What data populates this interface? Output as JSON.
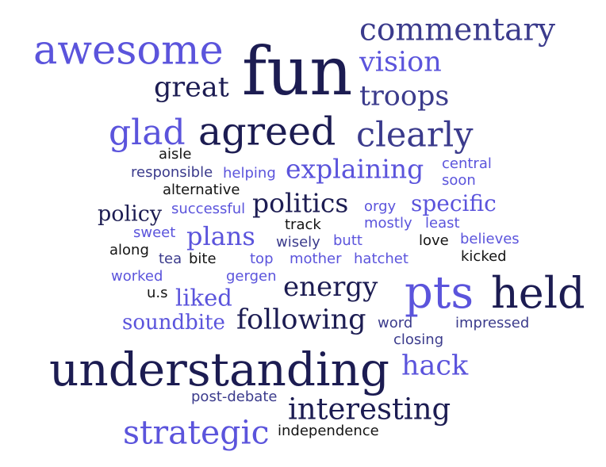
{
  "palette": {
    "dark": "#1c1c52",
    "medium": "#3b3b8c",
    "light": "#5b54dc",
    "black": "#141414"
  },
  "words": [
    {
      "text": "commentary",
      "color": "medium"
    },
    {
      "text": "awesome",
      "color": "light"
    },
    {
      "text": "fun",
      "color": "dark"
    },
    {
      "text": "vision",
      "color": "light"
    },
    {
      "text": "great",
      "color": "dark"
    },
    {
      "text": "troops",
      "color": "medium"
    },
    {
      "text": "glad",
      "color": "light"
    },
    {
      "text": "agreed",
      "color": "dark"
    },
    {
      "text": "clearly",
      "color": "medium"
    },
    {
      "text": "aisle",
      "color": "black"
    },
    {
      "text": "explaining",
      "color": "light"
    },
    {
      "text": "central",
      "color": "light"
    },
    {
      "text": "responsible",
      "color": "medium"
    },
    {
      "text": "helping",
      "color": "light"
    },
    {
      "text": "soon",
      "color": "light"
    },
    {
      "text": "alternative",
      "color": "black"
    },
    {
      "text": "politics",
      "color": "dark"
    },
    {
      "text": "specific",
      "color": "light"
    },
    {
      "text": "policy",
      "color": "dark"
    },
    {
      "text": "successful",
      "color": "light"
    },
    {
      "text": "orgy",
      "color": "light"
    },
    {
      "text": "track",
      "color": "black"
    },
    {
      "text": "mostly",
      "color": "light"
    },
    {
      "text": "least",
      "color": "light"
    },
    {
      "text": "sweet",
      "color": "light"
    },
    {
      "text": "plans",
      "color": "light"
    },
    {
      "text": "wisely",
      "color": "medium"
    },
    {
      "text": "butt",
      "color": "light"
    },
    {
      "text": "love",
      "color": "black"
    },
    {
      "text": "believes",
      "color": "light"
    },
    {
      "text": "along",
      "color": "black"
    },
    {
      "text": "kicked",
      "color": "black"
    },
    {
      "text": "tea",
      "color": "medium"
    },
    {
      "text": "bite",
      "color": "black"
    },
    {
      "text": "top",
      "color": "light"
    },
    {
      "text": "mother",
      "color": "light"
    },
    {
      "text": "hatchet",
      "color": "light"
    },
    {
      "text": "worked",
      "color": "light"
    },
    {
      "text": "gergen",
      "color": "light"
    },
    {
      "text": "energy",
      "color": "dark"
    },
    {
      "text": "pts",
      "color": "light"
    },
    {
      "text": "held",
      "color": "dark"
    },
    {
      "text": "u.s",
      "color": "black"
    },
    {
      "text": "liked",
      "color": "light"
    },
    {
      "text": "soundbite",
      "color": "light"
    },
    {
      "text": "following",
      "color": "dark"
    },
    {
      "text": "word",
      "color": "medium"
    },
    {
      "text": "impressed",
      "color": "medium"
    },
    {
      "text": "closing",
      "color": "medium"
    },
    {
      "text": "understanding",
      "color": "dark"
    },
    {
      "text": "hack",
      "color": "light"
    },
    {
      "text": "post-debate",
      "color": "medium"
    },
    {
      "text": "interesting",
      "color": "dark"
    },
    {
      "text": "strategic",
      "color": "light"
    },
    {
      "text": "independence",
      "color": "black"
    }
  ]
}
